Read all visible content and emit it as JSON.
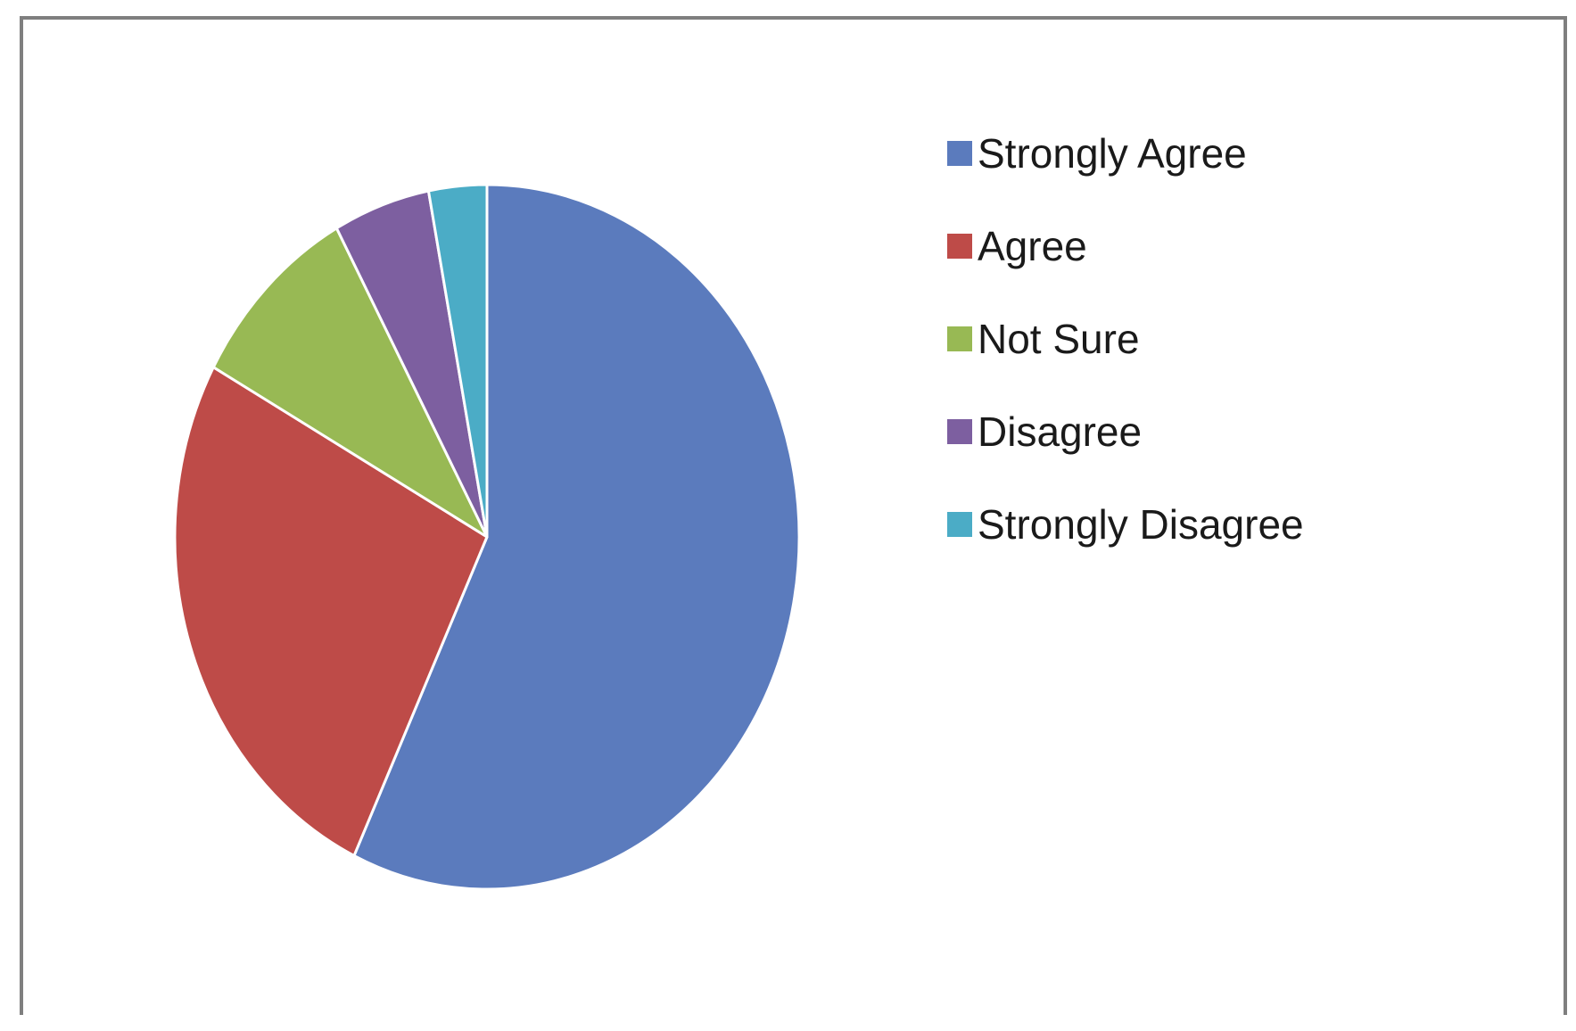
{
  "chart_data": {
    "type": "pie",
    "title": "",
    "categories": [
      "Strongly Agree",
      "Agree",
      "Not Sure",
      "Disagree",
      "Strongly Disagree"
    ],
    "values": [
      57,
      26,
      9,
      5,
      3
    ],
    "colors": [
      "#5b7bbd",
      "#be4b48",
      "#98b954",
      "#7d5fa0",
      "#4bacc6"
    ],
    "start_angle_deg": 0,
    "direction": "clockwise",
    "legend_position": "right"
  }
}
